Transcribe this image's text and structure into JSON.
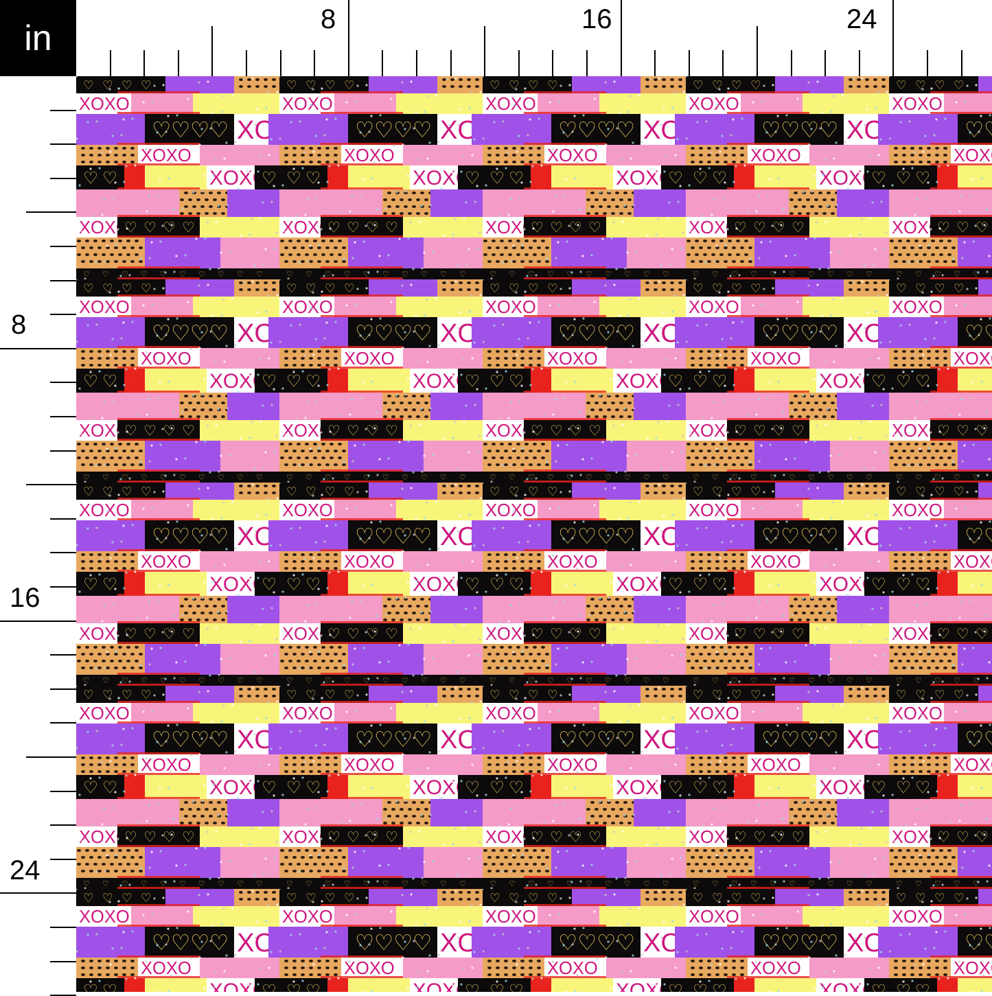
{
  "ruler": {
    "unit_label": "in",
    "top_labels": [
      "8",
      "16",
      "24"
    ],
    "left_labels": [
      "8",
      "16",
      "24"
    ]
  },
  "fabric": {
    "pattern_name": "",
    "motif_text": "XOXO",
    "colors": {
      "purple": "#a052e8",
      "yellow": "#f8f57a",
      "pink": "#f59bc8",
      "black": "#0c0a0a",
      "white": "#ffffff",
      "red": "#e8231e",
      "magenta": "#d0157e",
      "leopard": "#e8a860"
    }
  }
}
